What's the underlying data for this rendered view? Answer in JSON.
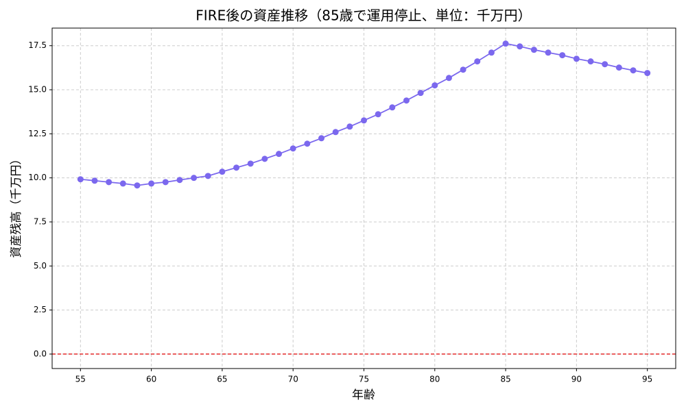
{
  "chart_data": {
    "type": "line",
    "title": "FIRE後の資産推移（85歳で運用停止、単位：千万円）",
    "x_label": "年齢",
    "y_label": "資産残高（千万円）",
    "x": [
      55,
      56,
      57,
      58,
      59,
      60,
      61,
      62,
      63,
      64,
      65,
      66,
      67,
      68,
      69,
      70,
      71,
      72,
      73,
      74,
      75,
      76,
      77,
      78,
      79,
      80,
      81,
      82,
      83,
      84,
      85,
      86,
      87,
      88,
      89,
      90,
      91,
      92,
      93,
      94,
      95
    ],
    "series": [
      {
        "color": "#7b68ee",
        "values": [
          9.92,
          9.84,
          9.76,
          9.68,
          9.57,
          9.68,
          9.76,
          9.88,
          10.0,
          10.11,
          10.35,
          10.58,
          10.81,
          11.08,
          11.36,
          11.67,
          11.94,
          12.25,
          12.6,
          12.91,
          13.26,
          13.61,
          14.0,
          14.39,
          14.82,
          15.25,
          15.67,
          16.14,
          16.61,
          17.11,
          17.62,
          17.46,
          17.27,
          17.11,
          16.96,
          16.76,
          16.61,
          16.45,
          16.26,
          16.1,
          15.95
        ]
      }
    ],
    "xlim": [
      53,
      97
    ],
    "ylim": [
      -0.82,
      18.5
    ],
    "xticks": [
      55,
      60,
      65,
      70,
      75,
      80,
      85,
      90,
      95
    ],
    "yticks": [
      {
        "value": 0,
        "label": "0.0"
      },
      2.5,
      {
        "value": 5,
        "label": "5.0"
      },
      7.5,
      {
        "value": 10,
        "label": "10.0"
      },
      12.5,
      {
        "value": 15,
        "label": "15.0"
      },
      17.5
    ],
    "grid": true,
    "reference_line": {
      "value": 0,
      "color": "#e00000"
    }
  }
}
